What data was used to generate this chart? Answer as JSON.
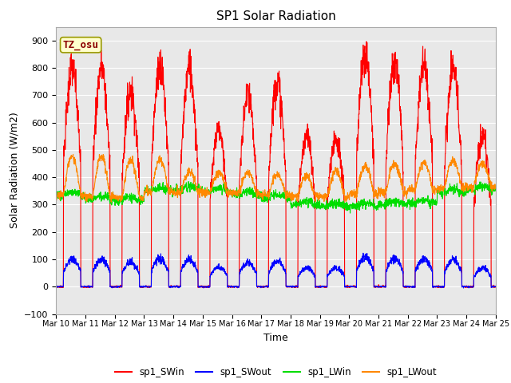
{
  "title": "SP1 Solar Radiation",
  "xlabel": "Time",
  "ylabel": "Solar Radiation (W/m2)",
  "ylim": [
    -100,
    950
  ],
  "bg_color": "#e8e8e8",
  "annotation_text": "TZ_osu",
  "annotation_color": "#8b0000",
  "annotation_bg": "#ffffcc",
  "annotation_border": "#999900",
  "tick_labels": [
    "Mar 10",
    "Mar 11",
    "Mar 12",
    "Mar 13",
    "Mar 14",
    "Mar 15",
    "Mar 16",
    "Mar 17",
    "Mar 18",
    "Mar 19",
    "Mar 20",
    "Mar 21",
    "Mar 22",
    "Mar 23",
    "Mar 24",
    "Mar 25"
  ],
  "legend": [
    {
      "label": "sp1_SWin",
      "color": "#ff0000"
    },
    {
      "label": "sp1_SWout",
      "color": "#0000ff"
    },
    {
      "label": "sp1_LWin",
      "color": "#00dd00"
    },
    {
      "label": "sp1_LWout",
      "color": "#ff8800"
    }
  ],
  "n_days": 15,
  "pts_per_day": 144,
  "seed": 7
}
